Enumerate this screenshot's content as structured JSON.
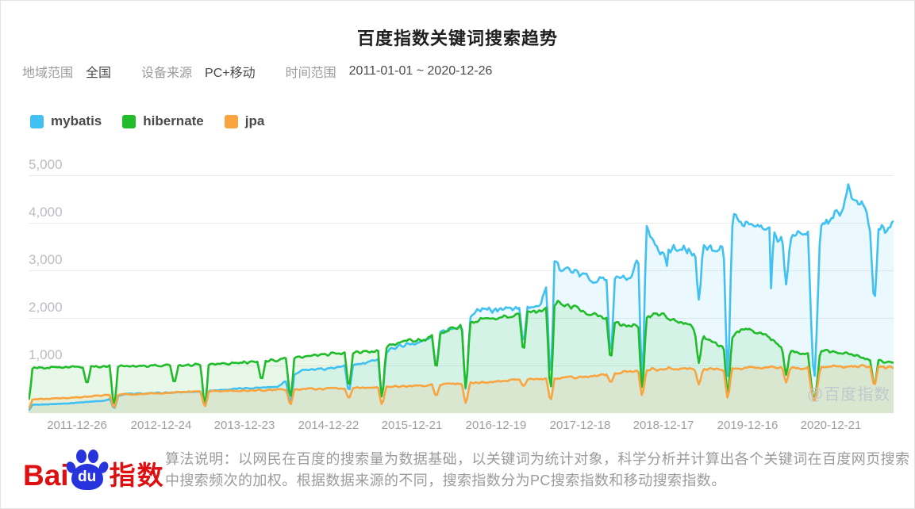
{
  "title": "百度指数关键词搜索趋势",
  "filters": [
    {
      "label": "地域范围",
      "value": "全国"
    },
    {
      "label": "设备来源",
      "value": "PC+移动"
    },
    {
      "label": "时间范围",
      "value": "2011-01-01 ~ 2020-12-26"
    }
  ],
  "watermark": "@百度指数",
  "footer": {
    "brand_bai": "Bai",
    "brand_du": "du",
    "brand_suffix": "指数",
    "algorithm_note": "算法说明：以网民在百度的搜索量为数据基础，以关键词为统计对象，科学分析并计算出各个关键词在百度网页搜索中搜索频次的加权。根据数据来源的不同，搜索指数分为PC搜索指数和移动搜索指数。"
  },
  "chart_data": {
    "type": "line",
    "title": "百度指数关键词搜索趋势",
    "x_labels": [
      "2011-12-26",
      "2012-12-24",
      "2013-12-23",
      "2014-12-22",
      "2015-12-21",
      "2016-12-19",
      "2017-12-18",
      "2018-12-17",
      "2019-12-16",
      "2020-12-21"
    ],
    "y_ticks": [
      "1,000",
      "2,000",
      "3,000",
      "4,000",
      "5,000"
    ],
    "ylim": [
      0,
      5500
    ],
    "x_range_years": [
      2011.0,
      2021.0
    ],
    "grid": true,
    "legend_position": "top-left",
    "sampling": "weekly",
    "series": [
      {
        "name": "mybatis",
        "color": "#3FC1F3",
        "fill_opacity": 0.1,
        "noise": 0.035,
        "trend": [
          [
            2011.0,
            160
          ],
          [
            2011.5,
            200
          ],
          [
            2011.95,
            260
          ],
          [
            2012.2,
            400
          ],
          [
            2012.6,
            420
          ],
          [
            2013.0,
            450
          ],
          [
            2013.5,
            510
          ],
          [
            2013.95,
            560
          ],
          [
            2014.2,
            900
          ],
          [
            2014.6,
            950
          ],
          [
            2015.0,
            1060
          ],
          [
            2015.3,
            1400
          ],
          [
            2015.6,
            1500
          ],
          [
            2015.9,
            1780
          ],
          [
            2016.05,
            1850
          ],
          [
            2016.25,
            2150
          ],
          [
            2016.6,
            2200
          ],
          [
            2016.95,
            2280
          ],
          [
            2017.12,
            3150
          ],
          [
            2017.35,
            2950
          ],
          [
            2017.6,
            2800
          ],
          [
            2017.8,
            2850
          ],
          [
            2018.0,
            2800
          ],
          [
            2018.18,
            3900
          ],
          [
            2018.32,
            3350
          ],
          [
            2018.5,
            3500
          ],
          [
            2018.7,
            3350
          ],
          [
            2018.9,
            3500
          ],
          [
            2019.05,
            3450
          ],
          [
            2019.18,
            4100
          ],
          [
            2019.35,
            3950
          ],
          [
            2019.55,
            3850
          ],
          [
            2019.75,
            3650
          ],
          [
            2019.95,
            3800
          ],
          [
            2020.2,
            4000
          ],
          [
            2020.42,
            4250
          ],
          [
            2020.48,
            4800
          ],
          [
            2020.56,
            4350
          ],
          [
            2020.66,
            4450
          ],
          [
            2020.74,
            3800
          ],
          [
            2020.88,
            3850
          ],
          [
            2020.99,
            3950
          ]
        ],
        "dips": [
          [
            2011.09,
            60
          ],
          [
            2012.07,
            90
          ],
          [
            2013.11,
            130
          ],
          [
            2014.09,
            200
          ],
          [
            2014.76,
            430
          ],
          [
            2015.14,
            330
          ],
          [
            2015.76,
            950
          ],
          [
            2016.1,
            450
          ],
          [
            2016.76,
            1450
          ],
          [
            2017.07,
            700
          ],
          [
            2017.76,
            1130
          ],
          [
            2018.12,
            620
          ],
          [
            2018.4,
            3050,
            0.018
          ],
          [
            2018.77,
            2380
          ],
          [
            2019.1,
            650
          ],
          [
            2019.6,
            2470,
            0.02
          ],
          [
            2019.77,
            2700
          ],
          [
            2020.09,
            640,
            0.07
          ],
          [
            2020.78,
            2300
          ]
        ]
      },
      {
        "name": "hibernate",
        "color": "#20BC2A",
        "fill_opacity": 0.11,
        "noise": 0.03,
        "trend": [
          [
            2011.0,
            750
          ],
          [
            2011.15,
            950
          ],
          [
            2011.6,
            970
          ],
          [
            2012.1,
            990
          ],
          [
            2012.6,
            1000
          ],
          [
            2013.1,
            1020
          ],
          [
            2013.6,
            1060
          ],
          [
            2014.1,
            1150
          ],
          [
            2014.6,
            1250
          ],
          [
            2015.0,
            1280
          ],
          [
            2015.35,
            1500
          ],
          [
            2015.65,
            1550
          ],
          [
            2015.95,
            1780
          ],
          [
            2016.25,
            1950
          ],
          [
            2016.6,
            2040
          ],
          [
            2016.95,
            2150
          ],
          [
            2017.15,
            2320
          ],
          [
            2017.45,
            2150
          ],
          [
            2017.75,
            1950
          ],
          [
            2018.0,
            1800
          ],
          [
            2018.25,
            2100
          ],
          [
            2018.45,
            2000
          ],
          [
            2018.65,
            1850
          ],
          [
            2018.9,
            1500
          ],
          [
            2019.05,
            1400
          ],
          [
            2019.25,
            1780
          ],
          [
            2019.5,
            1680
          ],
          [
            2019.75,
            1350
          ],
          [
            2019.95,
            1250
          ],
          [
            2020.2,
            1320
          ],
          [
            2020.5,
            1250
          ],
          [
            2020.75,
            1100
          ],
          [
            2020.99,
            1080
          ]
        ],
        "dips": [
          [
            2011.09,
            250
          ],
          [
            2011.76,
            600
          ],
          [
            2012.07,
            120
          ],
          [
            2012.76,
            620
          ],
          [
            2013.11,
            140
          ],
          [
            2013.76,
            680
          ],
          [
            2014.09,
            300
          ],
          [
            2014.76,
            520
          ],
          [
            2015.14,
            280
          ],
          [
            2015.76,
            900
          ],
          [
            2016.1,
            480
          ],
          [
            2016.76,
            1270
          ],
          [
            2017.07,
            400
          ],
          [
            2017.76,
            1100
          ],
          [
            2018.12,
            470
          ],
          [
            2018.77,
            1050
          ],
          [
            2019.1,
            330
          ],
          [
            2019.77,
            800
          ],
          [
            2020.09,
            240,
            0.07
          ],
          [
            2020.78,
            560
          ]
        ]
      },
      {
        "name": "jpa",
        "color": "#F9A43E",
        "fill_opacity": 0.13,
        "noise": 0.04,
        "trend": [
          [
            2011.0,
            280
          ],
          [
            2011.5,
            310
          ],
          [
            2012.0,
            380
          ],
          [
            2012.5,
            410
          ],
          [
            2013.0,
            450
          ],
          [
            2013.5,
            470
          ],
          [
            2014.0,
            490
          ],
          [
            2014.5,
            515
          ],
          [
            2015.0,
            540
          ],
          [
            2015.5,
            570
          ],
          [
            2016.0,
            620
          ],
          [
            2016.5,
            670
          ],
          [
            2017.0,
            720
          ],
          [
            2017.5,
            770
          ],
          [
            2018.0,
            880
          ],
          [
            2018.4,
            940
          ],
          [
            2019.0,
            920
          ],
          [
            2019.4,
            960
          ],
          [
            2020.0,
            950
          ],
          [
            2020.5,
            990
          ],
          [
            2020.99,
            960
          ]
        ],
        "dips": [
          [
            2011.09,
            90
          ],
          [
            2012.07,
            100
          ],
          [
            2013.11,
            130
          ],
          [
            2014.09,
            160
          ],
          [
            2014.76,
            300
          ],
          [
            2015.14,
            170
          ],
          [
            2015.76,
            350
          ],
          [
            2016.1,
            200
          ],
          [
            2016.76,
            560
          ],
          [
            2017.07,
            250
          ],
          [
            2017.76,
            640
          ],
          [
            2018.12,
            350
          ],
          [
            2018.77,
            600
          ],
          [
            2019.1,
            300
          ],
          [
            2019.77,
            640
          ],
          [
            2020.09,
            230,
            0.07
          ],
          [
            2020.78,
            560
          ]
        ]
      }
    ]
  }
}
